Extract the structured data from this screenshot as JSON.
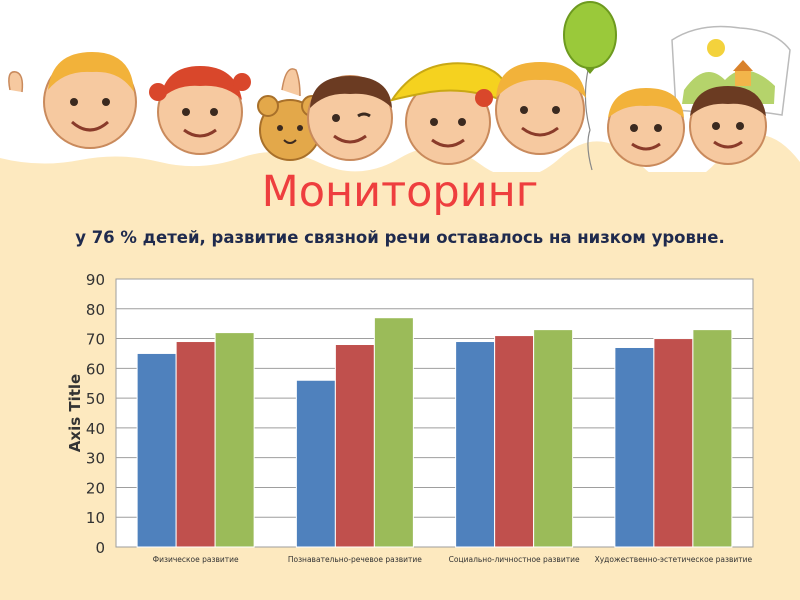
{
  "slide": {
    "title": "Мониторинг",
    "subtitle": "у 76 % детей, развитие связной речи оставалось на низком уровне."
  },
  "chart_data": {
    "type": "bar",
    "categories": [
      "Физическое развитие",
      "Познавательно-речевое развитие",
      "Социально-личностное развитие",
      "Художественно-эстетическое развитие"
    ],
    "series": [
      {
        "values": [
          65,
          56,
          69,
          67
        ],
        "color": "#4f81bd"
      },
      {
        "values": [
          69,
          68,
          71,
          70
        ],
        "color": "#c0504d"
      },
      {
        "values": [
          72,
          77,
          73,
          73
        ],
        "color": "#9bbb59"
      }
    ],
    "ylabel": "Axis Title",
    "ylim": [
      0,
      90
    ],
    "yticks": [
      0,
      10,
      20,
      30,
      40,
      50,
      60,
      70,
      80,
      90
    ],
    "grid": true
  },
  "colors": {
    "background": "#fde9bf",
    "title": "#ee3e3e",
    "subtitle": "#1f2a4d"
  }
}
